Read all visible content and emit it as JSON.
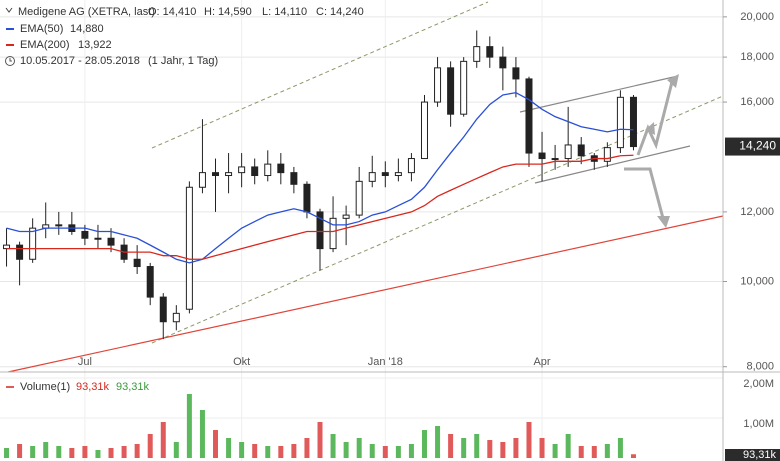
{
  "chart_data": [
    {
      "type": "candlestick",
      "title": "Medigene AG (XETRA, last)",
      "quote_labels": [
        "O: 14,410",
        "H: 14,590",
        "L: 14,110",
        "C: 14,240"
      ],
      "subtitle": "10.05.2017 - 28.05.2018",
      "period_label": "(1 Jahr, 1 Tag)",
      "last_value_label": "14,240",
      "categories": [
        null,
        null,
        null,
        null,
        null,
        null,
        "Jul",
        null,
        null,
        null,
        null,
        null,
        null,
        null,
        null,
        null,
        null,
        null,
        "Okt",
        null,
        null,
        null,
        null,
        null,
        null,
        null,
        null,
        null,
        null,
        "Jan '18",
        null,
        null,
        null,
        null,
        null,
        null,
        null,
        null,
        null,
        null,
        null,
        "Apr",
        null,
        null,
        null,
        null,
        null,
        null,
        null
      ],
      "open": [
        10.9,
        11.0,
        10.6,
        11.5,
        11.6,
        11.6,
        11.4,
        11.2,
        11.2,
        11.0,
        10.6,
        10.4,
        9.6,
        9.0,
        9.3,
        12.8,
        13.3,
        13.2,
        13.3,
        13.5,
        13.2,
        13.6,
        13.3,
        12.9,
        12.0,
        10.9,
        11.8,
        11.9,
        13.0,
        13.3,
        13.2,
        13.3,
        13.8,
        16.0,
        17.5,
        15.5,
        17.8,
        18.5,
        18.0,
        17.5,
        17.0,
        14.0,
        13.8,
        13.8,
        14.3,
        13.9,
        13.7,
        14.2,
        16.2
      ],
      "high": [
        11.5,
        11.1,
        11.8,
        12.3,
        12.0,
        12.0,
        11.6,
        11.6,
        11.5,
        11.2,
        11.0,
        10.5,
        9.7,
        9.4,
        13.0,
        15.3,
        13.8,
        14.0,
        14.0,
        13.8,
        14.1,
        14.0,
        13.5,
        13.0,
        12.1,
        12.5,
        12.2,
        13.5,
        13.9,
        13.7,
        13.8,
        14.0,
        16.3,
        18.0,
        17.8,
        18.0,
        19.3,
        19.0,
        18.5,
        18.0,
        17.1,
        14.8,
        14.3,
        15.8,
        14.6,
        14.0,
        14.4,
        16.5,
        16.3
      ],
      "low": [
        10.4,
        9.9,
        10.5,
        11.2,
        11.3,
        11.3,
        11.0,
        10.9,
        10.8,
        10.5,
        10.2,
        9.4,
        8.6,
        8.8,
        9.2,
        12.6,
        12.0,
        12.6,
        12.8,
        12.9,
        13.0,
        12.9,
        12.6,
        11.8,
        10.3,
        10.8,
        11.0,
        11.8,
        12.8,
        12.8,
        13.0,
        13.0,
        13.8,
        15.8,
        15.0,
        15.4,
        17.5,
        17.5,
        16.5,
        16.2,
        13.5,
        13.0,
        13.4,
        13.5,
        13.6,
        13.4,
        13.5,
        14.0,
        14.1
      ],
      "close": [
        11.0,
        10.6,
        11.5,
        11.6,
        11.6,
        11.4,
        11.2,
        11.2,
        11.0,
        10.6,
        10.4,
        9.6,
        9.0,
        9.2,
        12.8,
        13.3,
        13.2,
        13.3,
        13.5,
        13.2,
        13.6,
        13.3,
        12.9,
        12.0,
        10.9,
        11.8,
        11.9,
        13.0,
        13.3,
        13.2,
        13.3,
        13.8,
        16.0,
        17.5,
        15.5,
        17.8,
        18.5,
        18.0,
        17.5,
        17.0,
        14.0,
        13.8,
        13.8,
        14.3,
        13.9,
        13.7,
        14.2,
        16.2,
        14.24
      ],
      "up_color": "#ffffff",
      "down_color": "#222222",
      "candle_color": "#222222",
      "series": [
        {
          "name": "EMA(50)",
          "color": "#2a4fd8",
          "last_value_label": "14,880",
          "values": [
            11.5,
            11.4,
            11.4,
            11.5,
            11.5,
            11.5,
            11.5,
            11.4,
            11.4,
            11.3,
            11.2,
            11.0,
            10.8,
            10.6,
            10.5,
            10.6,
            10.9,
            11.2,
            11.5,
            11.7,
            11.9,
            12.0,
            12.1,
            12.0,
            11.8,
            11.6,
            11.6,
            11.7,
            11.9,
            12.0,
            12.2,
            12.4,
            12.8,
            13.4,
            14.0,
            14.6,
            15.3,
            15.9,
            16.3,
            16.4,
            16.1,
            15.7,
            15.4,
            15.2,
            15.0,
            14.9,
            14.8,
            14.9,
            14.88
          ]
        },
        {
          "name": "EMA(200)",
          "color": "#d8281e",
          "last_value_label": "13,922",
          "values": [
            10.9,
            10.9,
            10.9,
            10.9,
            10.9,
            10.9,
            10.9,
            10.9,
            10.9,
            10.8,
            10.8,
            10.8,
            10.7,
            10.7,
            10.6,
            10.6,
            10.7,
            10.8,
            10.9,
            11.0,
            11.1,
            11.2,
            11.3,
            11.4,
            11.4,
            11.4,
            11.5,
            11.6,
            11.7,
            11.8,
            11.9,
            12.0,
            12.2,
            12.5,
            12.7,
            12.9,
            13.1,
            13.3,
            13.5,
            13.6,
            13.6,
            13.6,
            13.7,
            13.7,
            13.7,
            13.8,
            13.8,
            13.9,
            13.92
          ]
        }
      ],
      "log_scale": true,
      "grid": true,
      "ylim": [
        7.89,
        20.47
      ],
      "yticks": [
        {
          "value": 8,
          "label": "8,000"
        },
        {
          "value": 10,
          "label": "10,000"
        },
        {
          "value": 12,
          "label": "12,000"
        },
        {
          "value": 16,
          "label": "16,000"
        },
        {
          "value": 18,
          "label": "18,000"
        },
        {
          "value": 20,
          "label": "20,000"
        }
      ]
    },
    {
      "type": "bar",
      "series": [
        {
          "name": "Volume(1)",
          "up_color": "#5cb85c",
          "down_color": "#e05a5a",
          "last_value_label": "93,31k",
          "values": [
            0.25,
            0.35,
            0.3,
            0.4,
            0.3,
            0.25,
            0.3,
            0.2,
            0.25,
            0.3,
            0.35,
            0.6,
            0.9,
            0.4,
            1.6,
            1.2,
            0.7,
            0.5,
            0.4,
            0.35,
            0.3,
            0.3,
            0.35,
            0.5,
            0.9,
            0.6,
            0.4,
            0.5,
            0.35,
            0.3,
            0.3,
            0.35,
            0.7,
            0.8,
            0.6,
            0.5,
            0.6,
            0.45,
            0.4,
            0.5,
            0.9,
            0.5,
            0.35,
            0.6,
            0.3,
            0.3,
            0.35,
            0.5,
            0.09331
          ]
        }
      ],
      "ylim": [
        0,
        2.15
      ],
      "yticks": [
        {
          "value": 1,
          "label": "1,00M"
        },
        {
          "value": 2,
          "label": "2,00M"
        }
      ]
    }
  ]
}
